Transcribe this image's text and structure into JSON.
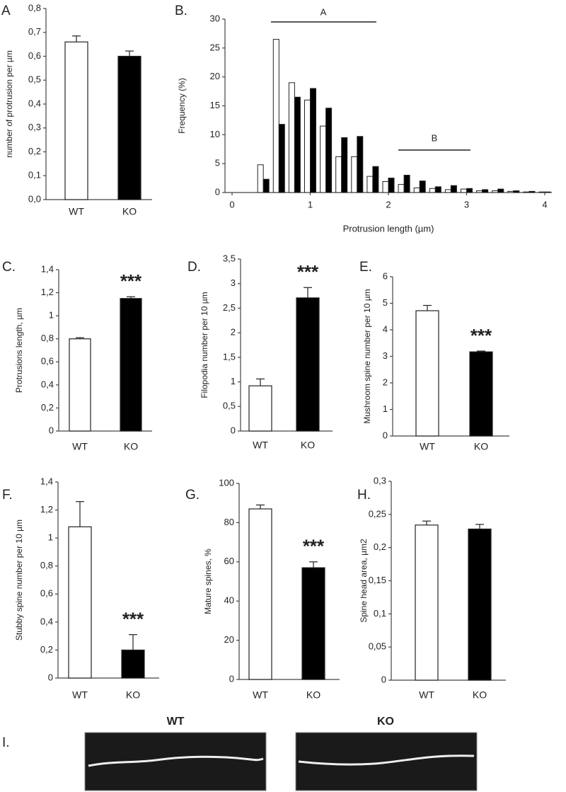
{
  "chart_data": [
    {
      "type": "bar",
      "label": "A",
      "ylabel": "number of protrusion per µm",
      "categories": [
        "WT",
        "KO"
      ],
      "values": [
        0.66,
        0.6
      ],
      "errors": [
        0.025,
        0.022
      ],
      "colors": [
        "#ffffff",
        "#000000"
      ],
      "ylim": [
        0,
        0.8
      ],
      "yticks": [
        {
          "value": 0,
          "label": "0,0"
        },
        {
          "value": 0.1,
          "label": "0,1"
        },
        {
          "value": 0.2,
          "label": "0,2"
        },
        {
          "value": 0.3,
          "label": "0,3"
        },
        {
          "value": 0.4,
          "label": "0,4"
        },
        {
          "value": 0.5,
          "label": "0,5"
        },
        {
          "value": 0.6,
          "label": "0,6"
        },
        {
          "value": 0.7,
          "label": "0,7"
        },
        {
          "value": 0.8,
          "label": "0,8"
        }
      ],
      "annotations": []
    },
    {
      "type": "grouped_bar",
      "label": "B.",
      "ylabel": "Frequency (%)",
      "xlabel": "Protrusion length (µm)",
      "x": [
        0.4,
        0.6,
        0.8,
        1.0,
        1.2,
        1.4,
        1.6,
        1.8,
        2.0,
        2.2,
        2.4,
        2.6,
        2.8,
        3.0,
        3.2,
        3.4,
        3.6,
        3.8,
        4.0
      ],
      "series": [
        {
          "color": "#ffffff",
          "values": [
            4.8,
            26.5,
            19,
            16,
            11.5,
            6.2,
            6.2,
            2.8,
            1.9,
            1.4,
            0.8,
            0.7,
            0.5,
            0.6,
            0.3,
            0.3,
            0.2,
            0.1,
            0.1
          ]
        },
        {
          "color": "#000000",
          "values": [
            2.3,
            11.8,
            16.5,
            18,
            14.6,
            9.5,
            9.7,
            4.5,
            2.5,
            3.0,
            2.0,
            1.0,
            1.2,
            0.7,
            0.5,
            0.6,
            0.3,
            0.2,
            0.1
          ]
        }
      ],
      "xlim": [
        0,
        4
      ],
      "xticks": [
        0,
        1,
        2,
        3,
        4
      ],
      "ylim": [
        0,
        30
      ],
      "yticks": [
        0,
        5,
        10,
        15,
        20,
        25,
        30
      ],
      "annotations": [
        "A",
        "B"
      ]
    },
    {
      "type": "bar",
      "label": "C.",
      "ylabel": "Protrusions  length, µm",
      "categories": [
        "WT",
        "KO"
      ],
      "values": [
        0.8,
        1.15
      ],
      "errors": [
        0.01,
        0.015
      ],
      "colors": [
        "#ffffff",
        "#000000"
      ],
      "ylim": [
        0,
        1.4
      ],
      "yticks": [
        0,
        {
          "value": 0.2,
          "label": "0,2"
        },
        {
          "value": 0.4,
          "label": "0,4"
        },
        {
          "value": 0.6,
          "label": "0,6"
        },
        {
          "value": 0.8,
          "label": "0,8"
        },
        1,
        {
          "value": 1.2,
          "label": "1,2"
        },
        {
          "value": 1.4,
          "label": "1,4"
        }
      ],
      "annotations": [
        {
          "text": "***",
          "category": "KO"
        }
      ]
    },
    {
      "type": "bar",
      "label": "D.",
      "ylabel": "Filopodia  number per 10 µm",
      "categories": [
        "WT",
        "KO"
      ],
      "values": [
        0.92,
        2.71
      ],
      "errors": [
        0.14,
        0.21
      ],
      "colors": [
        "#ffffff",
        "#000000"
      ],
      "ylim": [
        0,
        3.5
      ],
      "yticks": [
        0,
        {
          "value": 0.5,
          "label": "0,5"
        },
        1,
        {
          "value": 1.5,
          "label": "1,5"
        },
        2,
        {
          "value": 2.5,
          "label": "2,5"
        },
        3,
        {
          "value": 3.5,
          "label": "3,5"
        }
      ],
      "annotations": [
        {
          "text": "***",
          "category": "KO"
        }
      ]
    },
    {
      "type": "bar",
      "label": "E.",
      "ylabel": "Mushroom spine number per 10 µm",
      "categories": [
        "WT",
        "KO"
      ],
      "values": [
        4.72,
        3.17
      ],
      "errors": [
        0.2,
        0.03
      ],
      "colors": [
        "#ffffff",
        "#000000"
      ],
      "ylim": [
        0,
        6
      ],
      "yticks": [
        0,
        1,
        2,
        3,
        4,
        5,
        6
      ],
      "annotations": [
        {
          "text": "***",
          "category": "KO"
        }
      ]
    },
    {
      "type": "bar",
      "label": "F.",
      "ylabel": "Stubby spine  number per 10 µm",
      "categories": [
        "WT",
        "KO"
      ],
      "values": [
        1.08,
        0.2
      ],
      "errors": [
        0.18,
        0.11
      ],
      "colors": [
        "#ffffff",
        "#000000"
      ],
      "ylim": [
        0,
        1.4
      ],
      "yticks": [
        0,
        {
          "value": 0.2,
          "label": "0,2"
        },
        {
          "value": 0.4,
          "label": "0,4"
        },
        {
          "value": 0.6,
          "label": "0,6"
        },
        {
          "value": 0.8,
          "label": "0,8"
        },
        1,
        {
          "value": 1.2,
          "label": "1,2"
        },
        {
          "value": 1.4,
          "label": "1,4"
        }
      ],
      "annotations": [
        {
          "text": "***",
          "category": "KO"
        }
      ]
    },
    {
      "type": "bar",
      "label": "G.",
      "ylabel": "Mature spines, %",
      "categories": [
        "WT",
        "KO"
      ],
      "values": [
        87,
        57
      ],
      "errors": [
        2,
        3
      ],
      "colors": [
        "#ffffff",
        "#000000"
      ],
      "ylim": [
        0,
        100
      ],
      "yticks": [
        0,
        20,
        40,
        60,
        80,
        100
      ],
      "annotations": [
        {
          "text": "***",
          "category": "KO"
        }
      ]
    },
    {
      "type": "bar",
      "label": "H.",
      "ylabel": "Spine head area, µm2",
      "categories": [
        "WT",
        "KO"
      ],
      "values": [
        0.234,
        0.228
      ],
      "errors": [
        0.006,
        0.007
      ],
      "colors": [
        "#ffffff",
        "#000000"
      ],
      "ylim": [
        0,
        0.3
      ],
      "yticks": [
        0,
        {
          "value": 0.05,
          "label": "0,05"
        },
        {
          "value": 0.1,
          "label": "0,1"
        },
        {
          "value": 0.15,
          "label": "0,15"
        },
        {
          "value": 0.2,
          "label": "0,2"
        },
        {
          "value": 0.25,
          "label": "0,25"
        },
        {
          "value": 0.3,
          "label": "0,3"
        }
      ],
      "annotations": []
    }
  ],
  "panel_i": {
    "label": "I.",
    "images": [
      "WT",
      "KO"
    ]
  }
}
